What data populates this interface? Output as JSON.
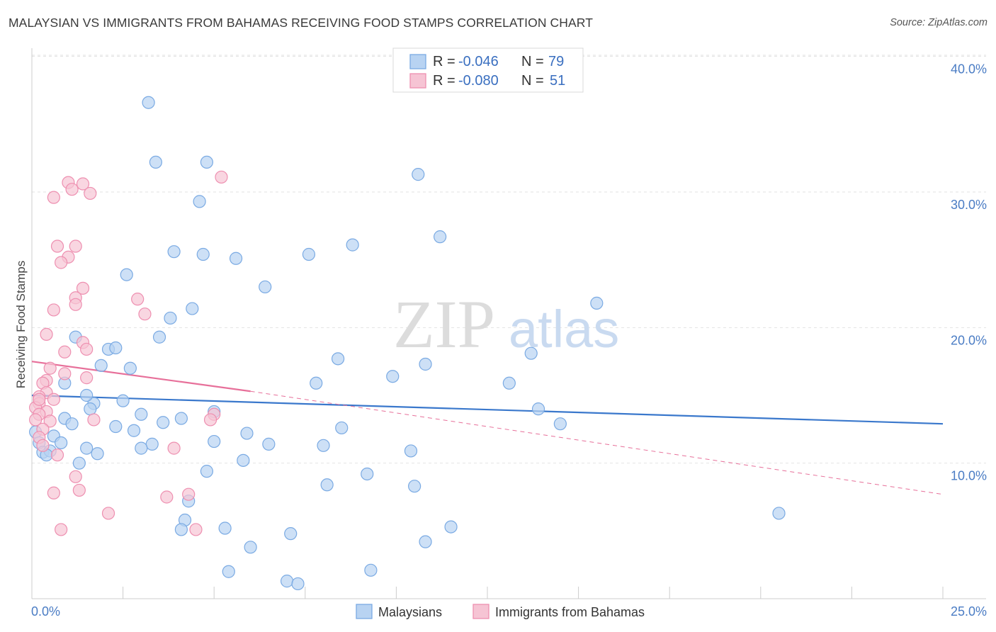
{
  "header": {
    "title": "MALAYSIAN VS IMMIGRANTS FROM BAHAMAS RECEIVING FOOD STAMPS CORRELATION CHART",
    "source": "Source: ZipAtlas.com"
  },
  "watermark": {
    "zip": "ZIP",
    "atlas": "atlas"
  },
  "colors": {
    "blue_fill": "#b8d3f2",
    "blue_stroke": "#7aaae3",
    "blue_line": "#3a78cc",
    "pink_fill": "#f6c4d4",
    "pink_stroke": "#ee8fb0",
    "pink_line": "#e7709a",
    "tick_text": "#4a7cc4"
  },
  "legend": {
    "rows": [
      {
        "r_label": "R =",
        "r_value": "-0.046",
        "n_label": "N =",
        "n_value": "79"
      },
      {
        "r_label": "R =",
        "r_value": "-0.080",
        "n_label": "N =",
        "n_value": "51"
      }
    ]
  },
  "bottom_legend": {
    "series1": "Malaysians",
    "series2": "Immigrants from Bahamas"
  },
  "chart_data": {
    "type": "scatter",
    "title": "MALAYSIAN VS IMMIGRANTS FROM BAHAMAS RECEIVING FOOD STAMPS CORRELATION CHART",
    "xlabel": "",
    "ylabel": "Receiving Food Stamps",
    "xlim": [
      0,
      25
    ],
    "ylim": [
      0,
      41
    ],
    "x_tick_labels": {
      "left": "0.0%",
      "right": "25.0%"
    },
    "y_ticks": [
      {
        "value": 10,
        "label": "10.0%"
      },
      {
        "value": 20,
        "label": "20.0%"
      },
      {
        "value": 30,
        "label": "30.0%"
      },
      {
        "value": 40,
        "label": "40.0%"
      }
    ],
    "grid": "horizontal dashed",
    "legend_position": "top-center",
    "series": [
      {
        "name": "Malaysians",
        "R": -0.046,
        "N": 79,
        "trend": {
          "x0": 0,
          "y0": 15.0,
          "x1": 25,
          "y1": 12.9,
          "style": "solid"
        },
        "points": [
          [
            3.2,
            36.6
          ],
          [
            3.4,
            32.2
          ],
          [
            4.8,
            32.2
          ],
          [
            10.6,
            31.3
          ],
          [
            4.6,
            29.3
          ],
          [
            11.2,
            26.7
          ],
          [
            8.8,
            26.1
          ],
          [
            3.9,
            25.6
          ],
          [
            4.7,
            25.4
          ],
          [
            5.6,
            25.1
          ],
          [
            7.6,
            25.4
          ],
          [
            2.6,
            23.9
          ],
          [
            6.4,
            23.0
          ],
          [
            15.5,
            21.8
          ],
          [
            4.4,
            21.4
          ],
          [
            3.8,
            20.7
          ],
          [
            3.5,
            19.3
          ],
          [
            1.2,
            19.3
          ],
          [
            2.1,
            18.4
          ],
          [
            2.3,
            18.5
          ],
          [
            8.4,
            17.7
          ],
          [
            10.8,
            17.3
          ],
          [
            13.7,
            18.1
          ],
          [
            1.9,
            17.2
          ],
          [
            2.7,
            17.0
          ],
          [
            9.9,
            16.4
          ],
          [
            7.8,
            15.9
          ],
          [
            13.1,
            15.9
          ],
          [
            0.9,
            15.9
          ],
          [
            1.7,
            14.4
          ],
          [
            1.5,
            15.0
          ],
          [
            2.5,
            14.6
          ],
          [
            1.6,
            14.0
          ],
          [
            13.9,
            14.0
          ],
          [
            5.0,
            13.8
          ],
          [
            3.0,
            13.6
          ],
          [
            4.1,
            13.3
          ],
          [
            0.9,
            13.3
          ],
          [
            3.6,
            13.0
          ],
          [
            1.1,
            12.9
          ],
          [
            14.5,
            12.9
          ],
          [
            2.3,
            12.7
          ],
          [
            8.5,
            12.6
          ],
          [
            2.8,
            12.4
          ],
          [
            0.1,
            12.3
          ],
          [
            5.9,
            12.2
          ],
          [
            0.6,
            12.0
          ],
          [
            0.2,
            11.5
          ],
          [
            5.0,
            11.6
          ],
          [
            0.8,
            11.5
          ],
          [
            6.5,
            11.4
          ],
          [
            3.3,
            11.4
          ],
          [
            8.0,
            11.3
          ],
          [
            3.0,
            11.1
          ],
          [
            1.5,
            11.1
          ],
          [
            10.4,
            10.9
          ],
          [
            0.3,
            10.8
          ],
          [
            0.5,
            10.9
          ],
          [
            0.4,
            10.6
          ],
          [
            1.8,
            10.7
          ],
          [
            1.3,
            10.0
          ],
          [
            5.8,
            10.2
          ],
          [
            4.8,
            9.4
          ],
          [
            9.2,
            9.2
          ],
          [
            8.1,
            8.4
          ],
          [
            10.5,
            8.3
          ],
          [
            20.5,
            6.3
          ],
          [
            4.2,
            5.8
          ],
          [
            11.5,
            5.3
          ],
          [
            5.3,
            5.2
          ],
          [
            4.1,
            5.1
          ],
          [
            7.1,
            4.8
          ],
          [
            10.8,
            4.2
          ],
          [
            6.0,
            3.8
          ],
          [
            5.4,
            2.0
          ],
          [
            9.3,
            2.1
          ],
          [
            7.0,
            1.3
          ],
          [
            7.3,
            1.1
          ],
          [
            4.3,
            7.2
          ]
        ]
      },
      {
        "name": "Immigrants from Bahamas",
        "R": -0.08,
        "N": 51,
        "trend": {
          "x0": 0,
          "y0": 17.5,
          "x1": 6.0,
          "y1": 15.3,
          "style": "solid",
          "dashed_x1": 25,
          "dashed_y1": 7.7
        },
        "points": [
          [
            1.0,
            30.7
          ],
          [
            1.4,
            30.6
          ],
          [
            5.2,
            31.1
          ],
          [
            1.1,
            30.2
          ],
          [
            1.6,
            29.9
          ],
          [
            0.6,
            29.6
          ],
          [
            1.2,
            26.0
          ],
          [
            0.7,
            26.0
          ],
          [
            1.0,
            25.2
          ],
          [
            0.8,
            24.8
          ],
          [
            1.4,
            22.9
          ],
          [
            2.9,
            22.1
          ],
          [
            1.2,
            22.2
          ],
          [
            1.2,
            21.7
          ],
          [
            0.6,
            21.3
          ],
          [
            3.1,
            21.0
          ],
          [
            0.4,
            19.5
          ],
          [
            1.4,
            18.9
          ],
          [
            1.5,
            18.4
          ],
          [
            0.9,
            18.2
          ],
          [
            0.5,
            17.0
          ],
          [
            0.9,
            16.6
          ],
          [
            1.5,
            16.3
          ],
          [
            0.4,
            16.1
          ],
          [
            0.3,
            15.9
          ],
          [
            0.4,
            15.2
          ],
          [
            0.2,
            14.9
          ],
          [
            0.6,
            14.7
          ],
          [
            0.2,
            14.4
          ],
          [
            0.1,
            14.1
          ],
          [
            0.4,
            13.8
          ],
          [
            0.2,
            13.6
          ],
          [
            0.1,
            13.2
          ],
          [
            0.5,
            13.1
          ],
          [
            1.7,
            13.2
          ],
          [
            5.0,
            13.6
          ],
          [
            4.9,
            13.2
          ],
          [
            0.3,
            12.5
          ],
          [
            0.2,
            11.9
          ],
          [
            0.3,
            11.3
          ],
          [
            3.9,
            11.1
          ],
          [
            0.7,
            10.6
          ],
          [
            1.2,
            9.0
          ],
          [
            1.3,
            8.0
          ],
          [
            0.6,
            7.8
          ],
          [
            4.3,
            7.7
          ],
          [
            3.7,
            7.5
          ],
          [
            2.1,
            6.3
          ],
          [
            0.8,
            5.1
          ],
          [
            4.5,
            5.1
          ],
          [
            0.2,
            14.7
          ]
        ]
      }
    ]
  }
}
